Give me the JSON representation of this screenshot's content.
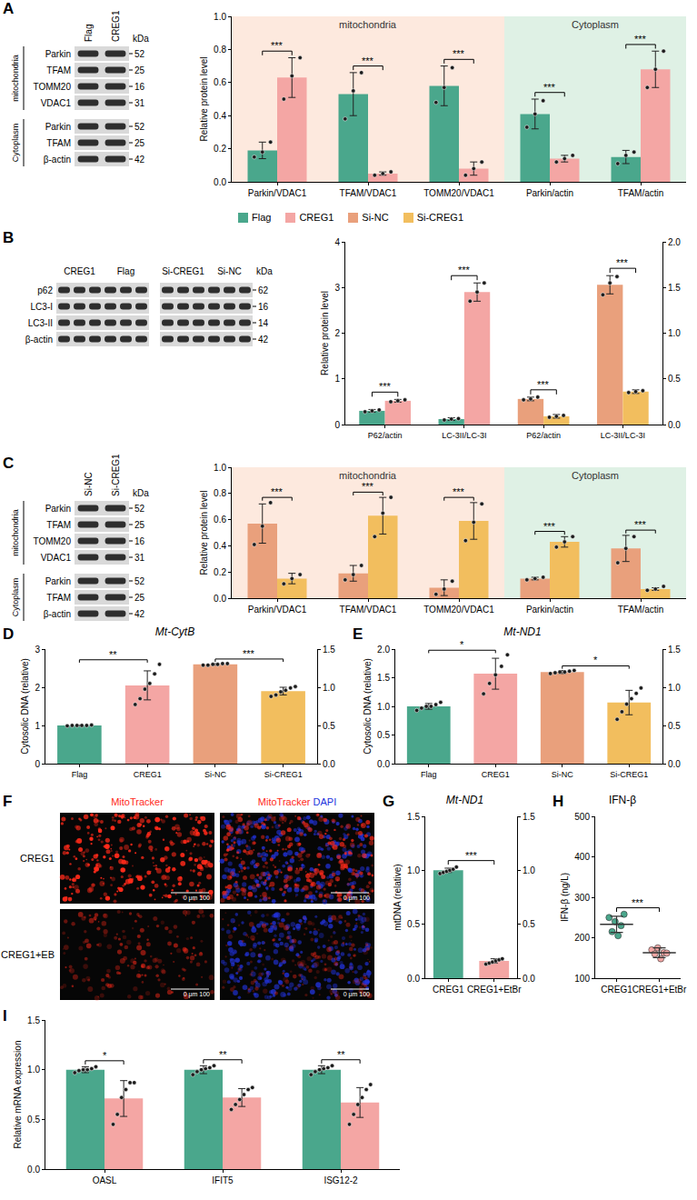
{
  "blots": [
    {
      "panel": "A",
      "unit": "kDa",
      "lanes": [
        "Flag",
        "CREG1"
      ],
      "sections": [
        {
          "name": "mitochondria",
          "rows": [
            {
              "protein": "Parkin",
              "kDa": 52
            },
            {
              "protein": "TFAM",
              "kDa": 25
            },
            {
              "protein": "TOMM20",
              "kDa": 16
            },
            {
              "protein": "VDAC1",
              "kDa": 31
            }
          ]
        },
        {
          "name": "Cytoplasm",
          "rows": [
            {
              "protein": "Parkin",
              "kDa": 52
            },
            {
              "protein": "TFAM",
              "kDa": 25
            },
            {
              "protein": "β-actin",
              "kDa": 42
            }
          ]
        }
      ]
    },
    {
      "panel": "B",
      "unit": "kDa",
      "lane_groups": [
        [
          "CREG1",
          "Flag"
        ],
        [
          "Si-CREG1",
          "Si-NC"
        ]
      ],
      "rows": [
        {
          "protein": "p62",
          "kDa": 62
        },
        {
          "protein": "LC3-I",
          "kDa": 16
        },
        {
          "protein": "LC3-II",
          "kDa": 14
        },
        {
          "protein": "β-actin",
          "kDa": 42
        }
      ]
    },
    {
      "panel": "C",
      "unit": "kDa",
      "lanes": [
        "Si-NC",
        "Si-CREG1"
      ],
      "sections": [
        {
          "name": "mitochondria",
          "rows": [
            {
              "protein": "Parkin",
              "kDa": 52
            },
            {
              "protein": "TFAM",
              "kDa": 25
            },
            {
              "protein": "TOMM20",
              "kDa": 16
            },
            {
              "protein": "VDAC1",
              "kDa": 31
            }
          ]
        },
        {
          "name": "Cytoplasm",
          "rows": [
            {
              "protein": "Parkin",
              "kDa": 52
            },
            {
              "protein": "TFAM",
              "kDa": 25
            },
            {
              "protein": "β-actin",
              "kDa": 42
            }
          ]
        }
      ]
    }
  ],
  "shared_legend": [
    {
      "name": "Flag",
      "color": "#4aa78c"
    },
    {
      "name": "CREG1",
      "color": "#f4a6a4"
    },
    {
      "name": "Si-NC",
      "color": "#e9a07c"
    },
    {
      "name": "Si-CREG1",
      "color": "#f2be5e"
    }
  ],
  "micrograph": {
    "panel": "F",
    "channels": [
      {
        "name": "MitoTracker",
        "color": "#ff2a1a"
      },
      {
        "name": "DAPI",
        "color": "#2233dd"
      }
    ],
    "columns": [
      [
        "MitoTracker"
      ],
      [
        "MitoTracker",
        "DAPI"
      ]
    ],
    "rows": [
      "CREG1",
      "CREG1+EB"
    ],
    "scale_bar_text": "0 μm 100"
  },
  "chart_data": [
    {
      "type": "bar",
      "ylabel": "Relative protein level",
      "categories": [
        "Parkin/VDAC1",
        "TFAM/VDAC1",
        "TOMM20/VDAC1",
        "Parkin/actin",
        "TFAM/actin"
      ],
      "ylim": [
        0,
        1
      ],
      "yticks": [
        {
          "value": 0,
          "label": "0.0"
        },
        0.2,
        0.4,
        0.6,
        0.8,
        {
          "value": 1,
          "label": "1.0"
        }
      ],
      "regions": [
        {
          "label": "mitochondria",
          "start": "Parkin/VDAC1",
          "end": "TOMM20/VDAC1",
          "color": "#fde9de"
        },
        {
          "label": "Cytoplasm",
          "start": "Parkin/actin",
          "end": "TFAM/actin",
          "color": "#dff1e5"
        }
      ],
      "series": [
        {
          "name": "Flag",
          "color": "#4aa78c",
          "values": [
            0.19,
            0.53,
            0.58,
            0.41,
            0.15
          ],
          "errors": [
            0.05,
            0.13,
            0.12,
            0.09,
            0.04
          ],
          "points": [
            [
              0.15,
              0.18,
              0.24
            ],
            [
              0.38,
              0.55,
              0.66
            ],
            [
              0.48,
              0.57,
              0.69
            ],
            [
              0.33,
              0.41,
              0.49
            ],
            [
              0.11,
              0.16,
              0.18
            ]
          ]
        },
        {
          "name": "CREG1",
          "color": "#f4a6a4",
          "values": [
            0.63,
            0.05,
            0.08,
            0.14,
            0.68
          ],
          "errors": [
            0.12,
            0.01,
            0.04,
            0.02,
            0.11
          ],
          "points": [
            [
              0.5,
              0.64,
              0.75
            ],
            [
              0.04,
              0.05,
              0.06
            ],
            [
              0.04,
              0.08,
              0.12
            ],
            [
              0.12,
              0.14,
              0.16
            ],
            [
              0.57,
              0.68,
              0.79
            ]
          ]
        }
      ],
      "significance": [
        "***",
        "***",
        "***",
        "***",
        "***"
      ]
    },
    {
      "type": "bar",
      "ylabel": "Relative protein level",
      "categories": [
        "P62/actin",
        "LC-3II/LC-3I",
        "P62/actin",
        "LC-3II/LC-3I"
      ],
      "ylim": [
        0,
        4
      ],
      "yticks": [
        0,
        1,
        2,
        3,
        4
      ],
      "y2lim": [
        0,
        2
      ],
      "y2ticks": [
        {
          "value": 0,
          "label": "0.0"
        },
        0.5,
        {
          "value": 1,
          "label": "1.0"
        },
        1.5,
        {
          "value": 2,
          "label": "2.0"
        }
      ],
      "series": [
        {
          "name": "Flag",
          "color": "#4aa78c",
          "values": [
            0.3,
            0.12,
            null,
            null
          ],
          "errors": [
            0.03,
            0.03,
            null,
            null
          ],
          "points": [
            [
              0.28,
              0.3,
              0.32
            ],
            [
              0.1,
              0.12,
              0.13
            ],
            null,
            null
          ]
        },
        {
          "name": "CREG1",
          "color": "#f4a6a4",
          "values": [
            0.52,
            2.9,
            null,
            null
          ],
          "errors": [
            0.03,
            0.2,
            null,
            null
          ],
          "points": [
            [
              0.5,
              0.52,
              0.54
            ],
            [
              2.7,
              2.9,
              3.1
            ],
            null,
            null
          ]
        },
        {
          "name": "Si-NC",
          "color": "#e9a07c",
          "axis": "y2",
          "values": [
            null,
            null,
            0.28,
            1.53
          ],
          "errors": [
            null,
            null,
            0.02,
            0.1
          ],
          "points": [
            null,
            null,
            [
              0.27,
              0.28,
              0.3
            ],
            [
              1.42,
              1.55,
              1.62
            ]
          ]
        },
        {
          "name": "Si-CREG1",
          "color": "#f2be5e",
          "axis": "y2",
          "values": [
            null,
            null,
            0.09,
            0.36
          ],
          "errors": [
            null,
            null,
            0.02,
            0.02
          ],
          "points": [
            null,
            null,
            [
              0.08,
              0.09,
              0.1
            ],
            [
              0.35,
              0.36,
              0.37
            ]
          ]
        }
      ],
      "significance": [
        "***",
        "***",
        "***",
        "***"
      ]
    },
    {
      "type": "bar",
      "ylabel": "Relative protein level",
      "categories": [
        "Parkin/VDAC1",
        "TFAM/VDAC1",
        "TOMM20/VDAC1",
        "Parkin/actin",
        "TFAM/actin"
      ],
      "ylim": [
        0,
        1
      ],
      "yticks": [
        {
          "value": 0,
          "label": "0.0"
        },
        0.2,
        0.4,
        0.6,
        0.8,
        {
          "value": 1,
          "label": "1.0"
        }
      ],
      "regions": [
        {
          "label": "mitochondria",
          "start": "Parkin/VDAC1",
          "end": "TOMM20/VDAC1",
          "color": "#fde9de"
        },
        {
          "label": "Cytoplasm",
          "start": "Parkin/actin",
          "end": "TFAM/actin",
          "color": "#dff1e5"
        }
      ],
      "series": [
        {
          "name": "Si-NC",
          "color": "#e9a07c",
          "values": [
            0.57,
            0.19,
            0.08,
            0.15,
            0.38
          ],
          "errors": [
            0.15,
            0.06,
            0.06,
            0.01,
            0.1
          ],
          "points": [
            [
              0.41,
              0.55,
              0.73
            ],
            [
              0.14,
              0.18,
              0.25
            ],
            [
              0.03,
              0.07,
              0.13
            ],
            [
              0.14,
              0.15,
              0.16
            ],
            [
              0.27,
              0.38,
              0.47
            ]
          ]
        },
        {
          "name": "Si-CREG1",
          "color": "#f2be5e",
          "values": [
            0.15,
            0.63,
            0.59,
            0.43,
            0.07
          ],
          "errors": [
            0.04,
            0.14,
            0.14,
            0.04,
            0.01
          ],
          "points": [
            [
              0.11,
              0.15,
              0.18
            ],
            [
              0.47,
              0.65,
              0.77
            ],
            [
              0.44,
              0.58,
              0.72
            ],
            [
              0.39,
              0.43,
              0.47
            ],
            [
              0.06,
              0.07,
              0.09
            ]
          ]
        }
      ],
      "significance": [
        "***",
        "***",
        "***",
        "***",
        "***"
      ]
    },
    {
      "type": "bar",
      "panel": "D",
      "title": "Mt-CytB",
      "ylabel": "Cytosolic DNA (relative)",
      "categories": [
        "Flag",
        "CREG1",
        "Si-NC",
        "Si-CREG1"
      ],
      "colors": [
        "#4aa78c",
        "#f4a6a4",
        "#e9a07c",
        "#f2be5e"
      ],
      "ylim": [
        0,
        3
      ],
      "yticks": [
        0,
        1,
        2,
        3
      ],
      "y2lim": [
        0,
        1.5
      ],
      "y2ticks": [
        {
          "value": 0,
          "label": "0.0"
        },
        0.5,
        {
          "value": 1,
          "label": "1.0"
        },
        1.5
      ],
      "series": [
        {
          "values": [
            1.0,
            2.05,
            null,
            null
          ],
          "errors": [
            0.01,
            0.38,
            null,
            null
          ],
          "points": [
            [
              0.99,
              1.0,
              1.0,
              1.0,
              1.0,
              1.01
            ],
            [
              1.55,
              1.7,
              1.95,
              2.1,
              2.35,
              2.6
            ],
            null,
            null
          ]
        },
        {
          "axis": "y2",
          "values": [
            null,
            null,
            1.3,
            0.95
          ],
          "errors": [
            null,
            null,
            0.01,
            0.05
          ],
          "points": [
            null,
            null,
            [
              1.29,
              1.29,
              1.3,
              1.3,
              1.31,
              1.31
            ],
            [
              0.88,
              0.9,
              0.94,
              0.96,
              0.99,
              1.01
            ]
          ]
        }
      ],
      "brackets": [
        {
          "from": "Flag",
          "to": "CREG1",
          "label": "**"
        },
        {
          "from": "Si-NC",
          "to": "Si-CREG1",
          "label": "***"
        }
      ]
    },
    {
      "type": "bar",
      "panel": "E",
      "title": "Mt-ND1",
      "ylabel": "Cytosolic DNA (relative)",
      "categories": [
        "Flag",
        "CREG1",
        "Si-NC",
        "Si-CREG1"
      ],
      "colors": [
        "#4aa78c",
        "#f4a6a4",
        "#e9a07c",
        "#f2be5e"
      ],
      "ylim": [
        0,
        2
      ],
      "yticks": [
        {
          "value": 0,
          "label": "0.0"
        },
        0.5,
        {
          "value": 1,
          "label": "1.0"
        },
        1.5,
        {
          "value": 2,
          "label": "2.0"
        }
      ],
      "y2lim": [
        0,
        1.5
      ],
      "y2ticks": [
        {
          "value": 0,
          "label": "0.0"
        },
        0.5,
        {
          "value": 1,
          "label": "1.0"
        },
        1.5
      ],
      "series": [
        {
          "values": [
            1.0,
            1.57,
            null,
            null
          ],
          "errors": [
            0.05,
            0.27,
            null,
            null
          ],
          "points": [
            [
              0.93,
              0.97,
              1.0,
              1.0,
              1.03,
              1.07
            ],
            [
              1.22,
              1.4,
              1.55,
              1.7,
              1.9
            ],
            null,
            null
          ]
        },
        {
          "axis": "y2",
          "values": [
            null,
            null,
            1.2,
            0.8
          ],
          "errors": [
            null,
            null,
            0.02,
            0.16
          ],
          "points": [
            null,
            null,
            [
              1.18,
              1.19,
              1.2,
              1.2,
              1.21,
              1.22
            ],
            [
              0.58,
              0.68,
              0.78,
              0.85,
              0.92,
              0.99
            ]
          ]
        }
      ],
      "brackets": [
        {
          "from": "Flag",
          "to": "CREG1",
          "label": "*"
        },
        {
          "from": "Si-NC",
          "to": "Si-CREG1",
          "label": "*"
        }
      ]
    },
    {
      "type": "bar",
      "panel": "G",
      "title": "Mt-ND1",
      "ylabel": "mtDNA (relative)",
      "categories": [
        "CREG1",
        "CREG1+EtBr"
      ],
      "colors": [
        "#4aa78c",
        "#f4a6a4"
      ],
      "ylim": [
        0,
        1.5
      ],
      "yticks": [
        {
          "value": 0,
          "label": "0.0"
        },
        0.5,
        {
          "value": 1,
          "label": "1.0"
        },
        1.5
      ],
      "y2lim": [
        0,
        1.5
      ],
      "y2ticks": [
        {
          "value": 0,
          "label": "0.0"
        },
        0.5,
        {
          "value": 1,
          "label": "1.0"
        },
        1.5
      ],
      "series": [
        {
          "values": [
            1.0,
            0.16
          ],
          "errors": [
            0.02,
            0.02
          ],
          "points": [
            [
              0.97,
              0.98,
              0.99,
              1.0,
              1.01,
              1.03
            ],
            [
              0.13,
              0.14,
              0.15,
              0.16,
              0.17,
              0.18
            ]
          ]
        }
      ],
      "brackets": [
        {
          "from": "CREG1",
          "to": "CREG1+EtBr",
          "label": "***"
        }
      ]
    },
    {
      "type": "scatter",
      "panel": "H",
      "title": "IFN-β",
      "ylabel": "IFN-β (ng/L)",
      "categories": [
        "CREG1",
        "CREG1+EtBr"
      ],
      "colors": [
        "#4aa78c",
        "#f4a6a4"
      ],
      "ylim": [
        100,
        500
      ],
      "yticks": [
        100,
        200,
        300,
        400,
        500
      ],
      "series": [
        {
          "values": [
            233,
            163
          ],
          "errors": [
            20,
            12
          ],
          "points": [
            [
              250,
              215,
              240,
              205,
              230,
              258
            ],
            [
              170,
              160,
              175,
              148,
              163,
              162
            ]
          ]
        }
      ],
      "brackets": [
        {
          "from": "CREG1",
          "to": "CREG1+EtBr",
          "label": "***"
        }
      ]
    },
    {
      "type": "bar",
      "panel": "I",
      "ylabel": "Relative mRNA expression",
      "categories": [
        "OASL",
        "IFIT5",
        "ISG12-2"
      ],
      "ylim": [
        0,
        1.5
      ],
      "yticks": [
        {
          "value": 0,
          "label": "0.0"
        },
        0.5,
        {
          "value": 1,
          "label": "1.0"
        },
        1.5
      ],
      "series": [
        {
          "color": "#4aa78c",
          "values": [
            1.0,
            1.0,
            1.0
          ],
          "errors": [
            0.03,
            0.04,
            0.04
          ],
          "points": [
            [
              0.97,
              0.99,
              1.0,
              1.0,
              1.01,
              1.03
            ],
            [
              0.95,
              0.98,
              1.0,
              1.01,
              1.02,
              1.04
            ],
            [
              0.95,
              0.98,
              1.0,
              1.01,
              1.02,
              1.04
            ]
          ]
        },
        {
          "color": "#f4a6a4",
          "values": [
            0.71,
            0.72,
            0.67
          ],
          "errors": [
            0.18,
            0.09,
            0.15
          ],
          "points": [
            [
              0.45,
              0.55,
              0.72,
              0.8,
              0.87,
              0.87
            ],
            [
              0.6,
              0.65,
              0.7,
              0.75,
              0.8,
              0.82
            ],
            [
              0.45,
              0.55,
              0.65,
              0.72,
              0.8,
              0.85
            ]
          ]
        }
      ],
      "significance": [
        "*",
        "**",
        "**"
      ]
    }
  ]
}
